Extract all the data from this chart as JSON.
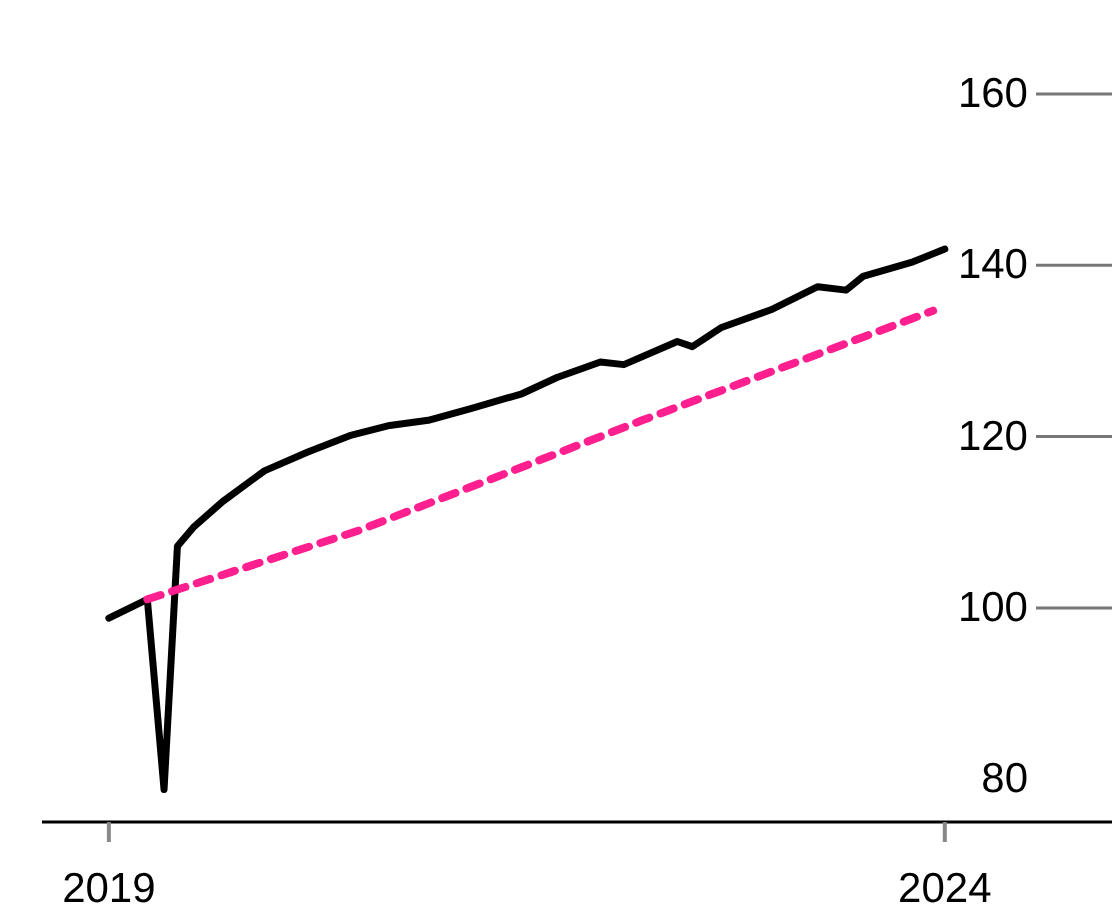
{
  "chart_data": {
    "type": "line",
    "xlim": [
      2018.6,
      2025
    ],
    "xticks": [
      2019,
      2024
    ],
    "ylim": [
      75,
      160
    ],
    "yticks": [
      80,
      100,
      120,
      140,
      160
    ],
    "series": [
      {
        "color": "#000000",
        "line_style": "solid",
        "x": [
          2019.0,
          2019.23,
          2019.33,
          2019.41,
          2019.51,
          2019.68,
          2019.93,
          2020.19,
          2020.44,
          2020.68,
          2020.91,
          2021.17,
          2021.47,
          2021.68,
          2021.94,
          2022.08,
          2022.4,
          2022.49,
          2022.66,
          2022.96,
          2023.24,
          2023.41,
          2023.51,
          2023.81,
          2024.0
        ],
        "values": [
          98.8,
          101,
          78.8,
          107.2,
          109.5,
          112.4,
          116,
          118.2,
          120.1,
          121.3,
          121.9,
          123.3,
          125,
          126.9,
          128.7,
          128.4,
          131.1,
          130.5,
          132.7,
          134.8,
          137.5,
          137.1,
          138.7,
          140.4,
          141.9
        ]
      },
      {
        "color": "#ff1f8e",
        "line_style": "dashed",
        "x": [
          2019.23,
          2020.49,
          2022.19,
          2023.93
        ],
        "values": [
          101,
          109,
          121.9,
          134.7
        ]
      }
    ]
  }
}
